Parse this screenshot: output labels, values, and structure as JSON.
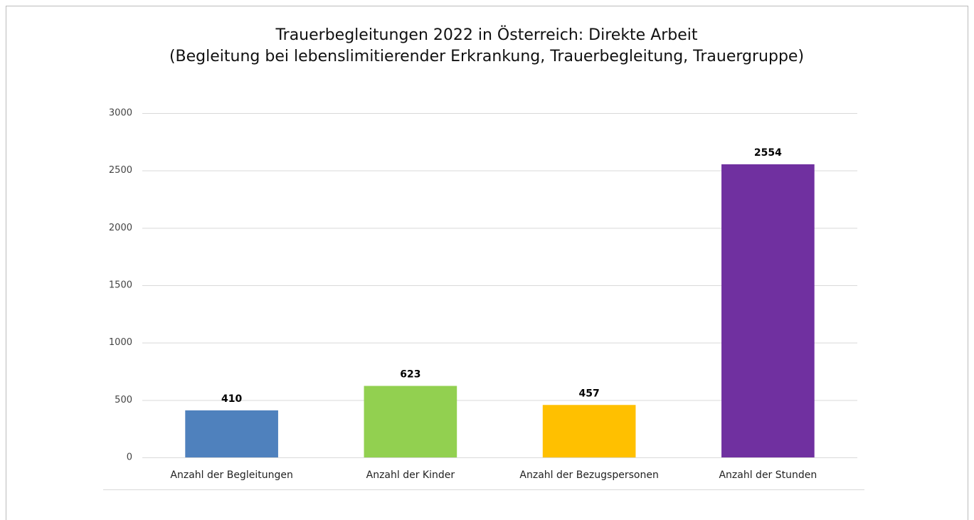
{
  "chart_data": {
    "type": "bar",
    "title": "Trauerbegleitungen 2022 in Österreich: Direkte Arbeit",
    "subtitle": "(Begleitung bei lebenslimitierender Erkrankung, Trauerbegleitung, Trauergruppe)",
    "categories": [
      "Anzahl der Begleitungen",
      "Anzahl der Kinder",
      "Anzahl der Bezugspersonen",
      "Anzahl der Stunden"
    ],
    "values": [
      410,
      623,
      457,
      2554
    ],
    "colors": [
      "#4f81bd",
      "#92d050",
      "#ffc000",
      "#7030a0"
    ],
    "ylim": [
      0,
      3000
    ],
    "yticks": [
      0,
      500,
      1000,
      1500,
      2000,
      2500,
      3000
    ],
    "grid": true
  }
}
